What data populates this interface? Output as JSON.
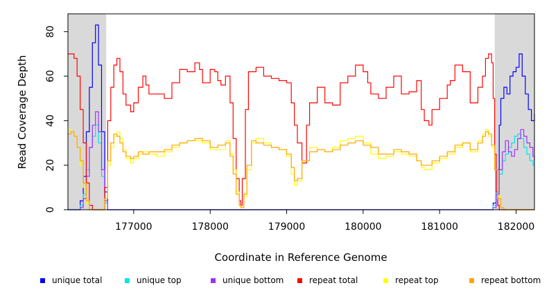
{
  "chart_data": {
    "type": "line",
    "title": "",
    "xlabel": "Coordinate in Reference Genome",
    "ylabel": "Read Coverage Depth",
    "xlim": [
      176140,
      182240
    ],
    "ylim": [
      0,
      88
    ],
    "x_ticks": [
      177000,
      178000,
      179000,
      180000,
      181000,
      182000
    ],
    "x_tick_labels": [
      "177000",
      "178000",
      "179000",
      "180000",
      "181000",
      "182000"
    ],
    "y_ticks": [
      0,
      20,
      40,
      60,
      80
    ],
    "y_tick_labels": [
      "0",
      "20",
      "40",
      "60",
      "80"
    ],
    "shaded_regions": [
      {
        "x0": 176140,
        "x1": 176640,
        "color": "#d9d9d9"
      },
      {
        "x0": 181720,
        "x1": 182240,
        "color": "#d9d9d9"
      }
    ],
    "grid": false,
    "legend_position": "bottom",
    "series": [
      {
        "name": "unique total",
        "color": "#0000ff",
        "x": [
          176140,
          176220,
          176260,
          176300,
          176340,
          176380,
          176420,
          176460,
          176500,
          176540,
          176580,
          176620,
          176660,
          177000,
          178000,
          179000,
          180000,
          181000,
          181660,
          181700,
          181740,
          181780,
          181800,
          181840,
          181880,
          181920,
          181960,
          182000,
          182040,
          182080,
          182120,
          182160,
          182200,
          182240
        ],
        "y": [
          0,
          0,
          0,
          4,
          15,
          35,
          55,
          75,
          83,
          65,
          35,
          8,
          0,
          0,
          0,
          0,
          0,
          0,
          0,
          3,
          18,
          38,
          50,
          55,
          52,
          60,
          62,
          64,
          70,
          60,
          52,
          45,
          40,
          43
        ]
      },
      {
        "name": "unique top",
        "color": "#00e5ee",
        "x": [
          176140,
          176260,
          176300,
          176340,
          176380,
          176420,
          176460,
          176500,
          176540,
          176580,
          176620,
          176660,
          177000,
          178000,
          179000,
          180000,
          181000,
          181660,
          181700,
          181740,
          181780,
          181820,
          181860,
          181900,
          181940,
          181980,
          182020,
          182060,
          182100,
          182140,
          182180,
          182220,
          182240
        ],
        "y": [
          0,
          0,
          2,
          7,
          18,
          28,
          33,
          38,
          30,
          15,
          3,
          0,
          0,
          0,
          0,
          0,
          0,
          0,
          2,
          8,
          16,
          22,
          25,
          28,
          30,
          33,
          34,
          32,
          28,
          25,
          22,
          20,
          20
        ]
      },
      {
        "name": "unique bottom",
        "color": "#9b30ff",
        "x": [
          176140,
          176260,
          176300,
          176340,
          176380,
          176420,
          176460,
          176500,
          176540,
          176580,
          176620,
          176660,
          177000,
          178000,
          179000,
          180000,
          181000,
          181660,
          181700,
          181740,
          181780,
          181820,
          181860,
          181900,
          181940,
          181980,
          182020,
          182060,
          182100,
          182140,
          182180,
          182220,
          182240
        ],
        "y": [
          0,
          0,
          1,
          5,
          15,
          28,
          38,
          44,
          35,
          18,
          4,
          0,
          0,
          0,
          0,
          0,
          0,
          0,
          1,
          7,
          18,
          26,
          31,
          26,
          24,
          27,
          32,
          36,
          33,
          30,
          28,
          24,
          22
        ]
      },
      {
        "name": "repeat total",
        "color": "#ff0000",
        "x": [
          176140,
          176180,
          176220,
          176260,
          176300,
          176340,
          176380,
          176420,
          176460,
          176500,
          176540,
          176580,
          176620,
          176660,
          176700,
          176740,
          176780,
          176820,
          176860,
          176900,
          176960,
          177000,
          177060,
          177120,
          177160,
          177200,
          177300,
          177400,
          177500,
          177600,
          177700,
          177800,
          177860,
          177900,
          178000,
          178060,
          178100,
          178140,
          178200,
          178260,
          178300,
          178340,
          178380,
          178400,
          178420,
          178460,
          178500,
          178560,
          178600,
          178700,
          178800,
          178900,
          179000,
          179060,
          179100,
          179140,
          179200,
          179260,
          179300,
          179400,
          179500,
          179600,
          179700,
          179800,
          179900,
          180000,
          180060,
          180100,
          180200,
          180300,
          180400,
          180500,
          180600,
          180700,
          180760,
          180800,
          180860,
          180900,
          181000,
          181060,
          181100,
          181140,
          181200,
          181300,
          181400,
          181500,
          181560,
          181600,
          181640,
          181680,
          181700,
          181720,
          181740,
          181760,
          181780,
          181800,
          181840,
          181900,
          181940,
          182000,
          182240
        ],
        "y": [
          70,
          70,
          68,
          60,
          45,
          30,
          12,
          2,
          0,
          0,
          0,
          0,
          10,
          40,
          55,
          65,
          68,
          62,
          52,
          47,
          44,
          48,
          55,
          60,
          56,
          52,
          52,
          50,
          57,
          63,
          62,
          66,
          63,
          57,
          63,
          62,
          58,
          56,
          60,
          48,
          32,
          14,
          4,
          2,
          14,
          45,
          62,
          62,
          64,
          60,
          59,
          58,
          57,
          48,
          38,
          30,
          21,
          38,
          48,
          55,
          48,
          47,
          57,
          60,
          65,
          62,
          57,
          52,
          50,
          55,
          60,
          52,
          53,
          58,
          45,
          40,
          38,
          45,
          50,
          50,
          56,
          58,
          65,
          62,
          48,
          55,
          60,
          68,
          70,
          66,
          50,
          25,
          8,
          2,
          0,
          0,
          0,
          0,
          0,
          0,
          0
        ]
      },
      {
        "name": "repeat top",
        "color": "#ffff00",
        "x": [
          176140,
          176180,
          176220,
          176260,
          176300,
          176340,
          176380,
          176420,
          176460,
          176500,
          176540,
          176580,
          176620,
          176660,
          176700,
          176740,
          176780,
          176820,
          176860,
          176900,
          176960,
          177000,
          177060,
          177120,
          177200,
          177300,
          177400,
          177500,
          177600,
          177700,
          177800,
          177900,
          178000,
          178100,
          178200,
          178260,
          178300,
          178340,
          178380,
          178400,
          178440,
          178480,
          178540,
          178600,
          178700,
          178800,
          178900,
          179000,
          179060,
          179100,
          179140,
          179200,
          179300,
          179400,
          179500,
          179600,
          179700,
          179800,
          179900,
          180000,
          180100,
          180200,
          180300,
          180400,
          180500,
          180600,
          180700,
          180760,
          180800,
          180900,
          181000,
          181100,
          181200,
          181300,
          181400,
          181500,
          181560,
          181600,
          181640,
          181680,
          181720,
          181760,
          181800,
          181840,
          181900,
          182000,
          182240
        ],
        "y": [
          36,
          35,
          33,
          28,
          20,
          10,
          3,
          0,
          0,
          0,
          0,
          0,
          5,
          20,
          28,
          33,
          35,
          32,
          27,
          23,
          21,
          23,
          25,
          26,
          25,
          24,
          26,
          28,
          30,
          31,
          31,
          30,
          27,
          27,
          31,
          25,
          18,
          8,
          2,
          1,
          6,
          18,
          30,
          32,
          30,
          28,
          27,
          24,
          16,
          11,
          13,
          22,
          28,
          27,
          26,
          28,
          31,
          32,
          33,
          30,
          25,
          23,
          24,
          26,
          25,
          24,
          22,
          19,
          18,
          21,
          23,
          25,
          28,
          30,
          26,
          31,
          34,
          36,
          33,
          28,
          18,
          6,
          1,
          0,
          0,
          0,
          0
        ]
      },
      {
        "name": "repeat bottom",
        "color": "#ffa500",
        "x": [
          176140,
          176180,
          176220,
          176260,
          176300,
          176340,
          176380,
          176420,
          176460,
          176500,
          176540,
          176580,
          176620,
          176660,
          176700,
          176740,
          176780,
          176820,
          176860,
          176900,
          176960,
          177000,
          177060,
          177120,
          177200,
          177300,
          177400,
          177500,
          177600,
          177700,
          177800,
          177900,
          178000,
          178100,
          178200,
          178260,
          178300,
          178340,
          178380,
          178400,
          178440,
          178480,
          178540,
          178600,
          178700,
          178800,
          178900,
          179000,
          179060,
          179100,
          179140,
          179200,
          179300,
          179400,
          179500,
          179600,
          179700,
          179800,
          179900,
          180000,
          180100,
          180200,
          180300,
          180400,
          180500,
          180600,
          180700,
          180760,
          180800,
          180900,
          181000,
          181100,
          181200,
          181300,
          181400,
          181500,
          181560,
          181600,
          181640,
          181680,
          181720,
          181760,
          181800,
          181840,
          181900,
          182000,
          182240
        ],
        "y": [
          34,
          35,
          33,
          28,
          22,
          12,
          4,
          0,
          0,
          0,
          0,
          0,
          5,
          22,
          30,
          34,
          33,
          30,
          26,
          24,
          23,
          24,
          26,
          25,
          26,
          26,
          27,
          29,
          30,
          31,
          32,
          31,
          28,
          29,
          30,
          24,
          16,
          7,
          2,
          1,
          7,
          20,
          31,
          30,
          29,
          28,
          27,
          25,
          19,
          13,
          14,
          22,
          26,
          27,
          26,
          27,
          29,
          30,
          31,
          29,
          28,
          25,
          25,
          27,
          26,
          25,
          22,
          20,
          20,
          22,
          24,
          26,
          29,
          30,
          27,
          30,
          33,
          35,
          34,
          29,
          18,
          5,
          1,
          0,
          0,
          0,
          0
        ]
      }
    ]
  }
}
